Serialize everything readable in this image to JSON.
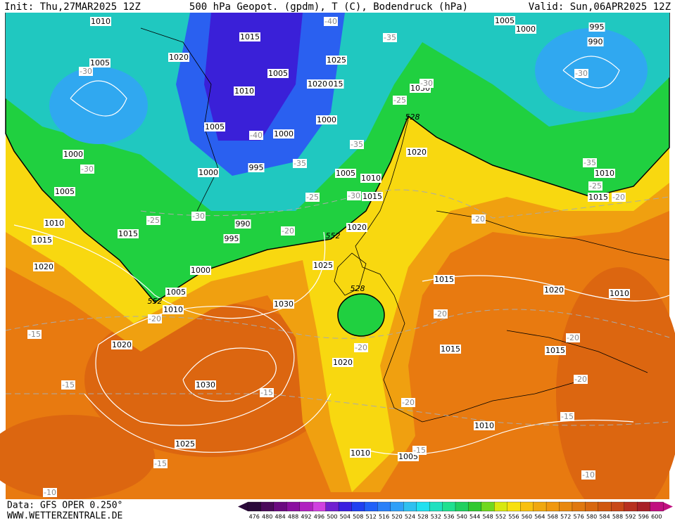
{
  "header": {
    "init": "Init: Thu,27MAR2025 12Z",
    "title": "500 hPa Geopot. (gpdm), T (C), Bodendruck (hPa)",
    "valid": "Valid: Sun,06APR2025 12Z"
  },
  "footer": {
    "data": "Data: GFS OPER 0.250°",
    "site": "WWW.WETTERZENTRALE.DE"
  },
  "colorbar": {
    "ticks": [
      476,
      480,
      484,
      488,
      492,
      496,
      500,
      504,
      508,
      512,
      516,
      520,
      524,
      528,
      532,
      536,
      540,
      544,
      548,
      552,
      556,
      560,
      564,
      568,
      572,
      576,
      580,
      584,
      588,
      592,
      596,
      600
    ],
    "colors": [
      "#2a0a3a",
      "#4a0a5a",
      "#6a0a80",
      "#8a10a0",
      "#b020c0",
      "#d040e0",
      "#7020d0",
      "#3a20e0",
      "#2040f0",
      "#2060f8",
      "#2a80f8",
      "#30a0f8",
      "#30c0f0",
      "#20e0f0",
      "#20e0c0",
      "#20e090",
      "#20d060",
      "#30c830",
      "#70d820",
      "#d8e810",
      "#f8e010",
      "#f8c010",
      "#f0a810",
      "#f09810",
      "#e88810",
      "#e07810",
      "#d86810",
      "#d05810",
      "#c84818",
      "#b83020",
      "#a82028",
      "#c01080"
    ]
  },
  "map": {
    "isobar_labels": [
      "1010",
      "1015",
      "1020",
      "1005",
      "1005",
      "1010",
      "1025",
      "1020",
      "015",
      "1030",
      "1005",
      "1000",
      "995",
      "990",
      "1005",
      "1000",
      "1000",
      "1000",
      "1005",
      "1000",
      "995",
      "1005",
      "1010",
      "1015",
      "1020",
      "1010",
      "1015",
      "1015",
      "990",
      "995",
      "1020",
      "1020",
      "1000",
      "1025",
      "1005",
      "1010",
      "1030",
      "1015",
      "1020",
      "1010",
      "1020",
      "1015",
      "1015",
      "1020",
      "1030",
      "1025",
      "1010",
      "1010",
      "1005",
      "1010",
      "1015"
    ],
    "temperature_labels": [
      "-40",
      "-35",
      "-30",
      "-30",
      "-25",
      "-30",
      "-40",
      "-35",
      "-35",
      "-30",
      "-25",
      "-30",
      "-30",
      "-25",
      "-20",
      "-35",
      "-25",
      "-20",
      "-20",
      "-20",
      "-15",
      "-20",
      "-20",
      "-20",
      "-20",
      "-15",
      "-15",
      "-20",
      "-15",
      "-15",
      "-15",
      "-10",
      "-10"
    ],
    "height_labels": [
      "552",
      "528",
      "552",
      "528"
    ]
  }
}
